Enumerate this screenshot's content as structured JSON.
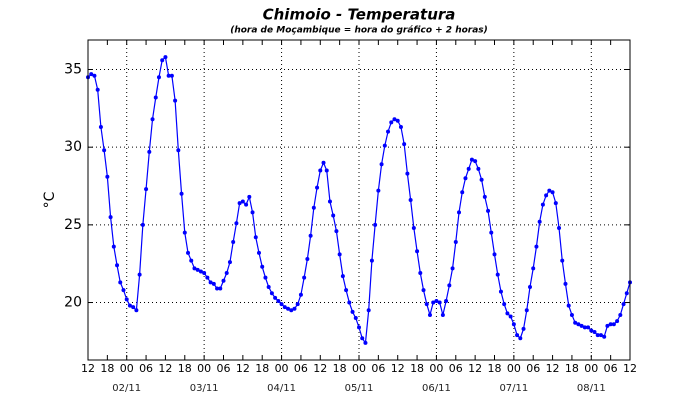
{
  "chart_data": {
    "type": "line",
    "title": "Chimoio - Temperatura",
    "subtitle": "(hora de Moçambique = hora do gráfico + 2 horas)",
    "y_label": "°C",
    "color": "#0000ff",
    "grid": true,
    "x": [
      0,
      1,
      2,
      3,
      4,
      5,
      6,
      7,
      8,
      9,
      10,
      11,
      12,
      13,
      14,
      15,
      16,
      17,
      18,
      19,
      20,
      21,
      22,
      23,
      24,
      25,
      26,
      27,
      28,
      29,
      30,
      31,
      32,
      33,
      34,
      35,
      36,
      37,
      38,
      39,
      40,
      41,
      42,
      43,
      44,
      45,
      46,
      47,
      48,
      49,
      50,
      51,
      52,
      53,
      54,
      55,
      56,
      57,
      58,
      59,
      60,
      61,
      62,
      63,
      64,
      65,
      66,
      67,
      68,
      69,
      70,
      71,
      72,
      73,
      74,
      75,
      76,
      77,
      78,
      79,
      80,
      81,
      82,
      83,
      84,
      85,
      86,
      87,
      88,
      89,
      90,
      91,
      92,
      93,
      94,
      95,
      96,
      97,
      98,
      99,
      100,
      101,
      102,
      103,
      104,
      105,
      106,
      107,
      108,
      109,
      110,
      111,
      112,
      113,
      114,
      115,
      116,
      117,
      118,
      119,
      120,
      121,
      122,
      123,
      124,
      125,
      126,
      127,
      128,
      129,
      130,
      131,
      132,
      133,
      134,
      135,
      136,
      137,
      138,
      139,
      140,
      141,
      142,
      143,
      144,
      145,
      146,
      147,
      148,
      149,
      150,
      151,
      152,
      153,
      154,
      155,
      156,
      157,
      158,
      159,
      160,
      161,
      162,
      163,
      164,
      165,
      166,
      167,
      168
    ],
    "values": [
      34.5,
      34.7,
      34.6,
      33.7,
      31.3,
      29.8,
      28.1,
      25.5,
      23.6,
      22.4,
      21.3,
      20.8,
      20.2,
      19.8,
      19.7,
      19.5,
      21.8,
      25.0,
      27.3,
      29.7,
      31.8,
      33.2,
      34.5,
      35.6,
      35.8,
      34.6,
      34.6,
      33.0,
      29.8,
      27.0,
      24.5,
      23.2,
      22.7,
      22.2,
      22.1,
      22.0,
      21.9,
      21.6,
      21.3,
      21.2,
      20.9,
      20.9,
      21.4,
      21.9,
      22.6,
      23.9,
      25.1,
      26.4,
      26.5,
      26.3,
      26.8,
      25.8,
      24.2,
      23.2,
      22.3,
      21.6,
      21.0,
      20.6,
      20.3,
      20.1,
      19.9,
      19.7,
      19.6,
      19.5,
      19.6,
      19.9,
      20.5,
      21.6,
      22.8,
      24.3,
      26.1,
      27.4,
      28.5,
      29.0,
      28.5,
      26.5,
      25.6,
      24.6,
      23.1,
      21.7,
      20.8,
      20.0,
      19.4,
      19.0,
      18.4,
      17.7,
      17.4,
      19.5,
      22.7,
      25.0,
      27.2,
      28.9,
      30.1,
      31.0,
      31.6,
      31.8,
      31.7,
      31.3,
      30.2,
      28.3,
      26.6,
      24.8,
      23.3,
      21.9,
      20.8,
      19.9,
      19.2,
      20.0,
      20.1,
      20.0,
      19.2,
      20.1,
      21.1,
      22.2,
      23.9,
      25.8,
      27.1,
      28.0,
      28.6,
      29.2,
      29.1,
      28.6,
      27.9,
      26.8,
      25.9,
      24.5,
      23.1,
      21.8,
      20.7,
      19.9,
      19.3,
      19.1,
      18.6,
      17.9,
      17.7,
      18.3,
      19.5,
      21.0,
      22.2,
      23.6,
      25.2,
      26.3,
      26.9,
      27.2,
      27.1,
      26.4,
      24.8,
      22.7,
      21.2,
      19.8,
      19.2,
      18.7,
      18.6,
      18.5,
      18.4,
      18.4,
      18.2,
      18.1,
      17.9,
      17.9,
      17.8,
      18.5,
      18.6,
      18.6,
      18.8,
      19.2,
      19.9,
      20.6,
      21.3
    ],
    "xlim": [
      0,
      168
    ],
    "xticks": [
      {
        "value": 0,
        "label": "12"
      },
      {
        "value": 6,
        "label": "18"
      },
      {
        "value": 12,
        "label": "00"
      },
      {
        "value": 18,
        "label": "06"
      },
      {
        "value": 24,
        "label": "12"
      },
      {
        "value": 30,
        "label": "18"
      },
      {
        "value": 36,
        "label": "00"
      },
      {
        "value": 42,
        "label": "06"
      },
      {
        "value": 48,
        "label": "12"
      },
      {
        "value": 54,
        "label": "18"
      },
      {
        "value": 60,
        "label": "00"
      },
      {
        "value": 66,
        "label": "06"
      },
      {
        "value": 72,
        "label": "12"
      },
      {
        "value": 78,
        "label": "18"
      },
      {
        "value": 84,
        "label": "00"
      },
      {
        "value": 90,
        "label": "06"
      },
      {
        "value": 96,
        "label": "12"
      },
      {
        "value": 102,
        "label": "18"
      },
      {
        "value": 108,
        "label": "00"
      },
      {
        "value": 114,
        "label": "06"
      },
      {
        "value": 120,
        "label": "12"
      },
      {
        "value": 126,
        "label": "18"
      },
      {
        "value": 132,
        "label": "00"
      },
      {
        "value": 138,
        "label": "06"
      },
      {
        "value": 144,
        "label": "12"
      },
      {
        "value": 150,
        "label": "18"
      },
      {
        "value": 156,
        "label": "00"
      },
      {
        "value": 162,
        "label": "06"
      },
      {
        "value": 168,
        "label": "12"
      }
    ],
    "date_labels": [
      {
        "value": 12,
        "label": "02/11"
      },
      {
        "value": 36,
        "label": "03/11"
      },
      {
        "value": 60,
        "label": "04/11"
      },
      {
        "value": 84,
        "label": "05/11"
      },
      {
        "value": 108,
        "label": "06/11"
      },
      {
        "value": 132,
        "label": "07/11"
      },
      {
        "value": 156,
        "label": "08/11"
      }
    ],
    "ylim": [
      16.3,
      36.9
    ],
    "yticks": [
      20,
      25,
      30,
      35
    ]
  }
}
